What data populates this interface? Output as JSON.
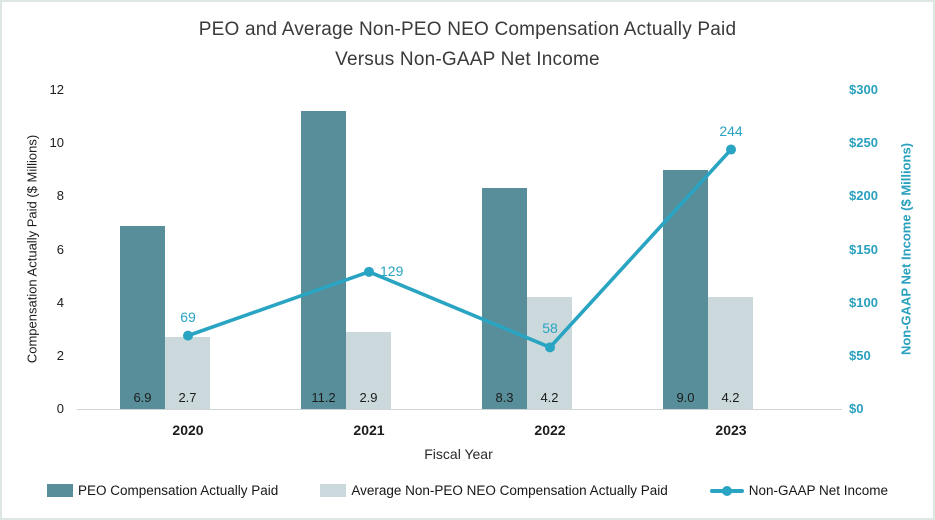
{
  "title": {
    "line1": "PEO and Average Non-PEO NEO Compensation Actually Paid",
    "line2": "Versus Non-GAAP Net Income"
  },
  "colors": {
    "peo_bar": "#578e99",
    "neo_bar": "#ccd9dc",
    "line": "#29a4c2",
    "right_axis_text": "#29a0bd",
    "baseline": "#cfd4d4",
    "frame_border": "#dfe7e4"
  },
  "chart_data": {
    "type": "bar+line",
    "categories": [
      "2020",
      "2021",
      "2022",
      "2023"
    ],
    "series": [
      {
        "name": "PEO Compensation Actually Paid",
        "type": "bar",
        "axis": "left",
        "color": "#578e99",
        "values": [
          6.9,
          11.2,
          8.3,
          9.0
        ],
        "labels": [
          "6.9",
          "11.2",
          "8.3",
          "9.0"
        ]
      },
      {
        "name": "Average Non-PEO NEO Compensation Actually Paid",
        "type": "bar",
        "axis": "left",
        "color": "#ccd9dc",
        "values": [
          2.7,
          2.9,
          4.2,
          4.2
        ],
        "labels": [
          "2.7",
          "2.9",
          "4.2",
          "4.2"
        ]
      },
      {
        "name": "Non-GAAP Net Income",
        "type": "line",
        "axis": "right",
        "color": "#29a4c2",
        "values": [
          69,
          129,
          58,
          244
        ],
        "labels": [
          "69",
          "129",
          "58",
          "244"
        ],
        "label_placement": [
          "above",
          "right",
          "above",
          "above"
        ]
      }
    ],
    "left_axis": {
      "title": "Compensation Actually Paid ($ Millions)",
      "min": 0,
      "max": 12,
      "ticks": [
        0,
        2,
        4,
        6,
        8,
        10,
        12
      ],
      "tick_labels": [
        "0",
        "2",
        "4",
        "6",
        "8",
        "10",
        "12"
      ]
    },
    "right_axis": {
      "title": "Non-GAAP Net Income ($ Millions)",
      "min": 0,
      "max": 300,
      "ticks": [
        0,
        50,
        100,
        150,
        200,
        250,
        300
      ],
      "tick_labels": [
        "$0",
        "$50",
        "$100",
        "$150",
        "$200",
        "$250",
        "$300"
      ]
    },
    "x_axis": {
      "title": "Fiscal Year"
    },
    "legend": {
      "position": "bottom"
    },
    "grid": false
  }
}
